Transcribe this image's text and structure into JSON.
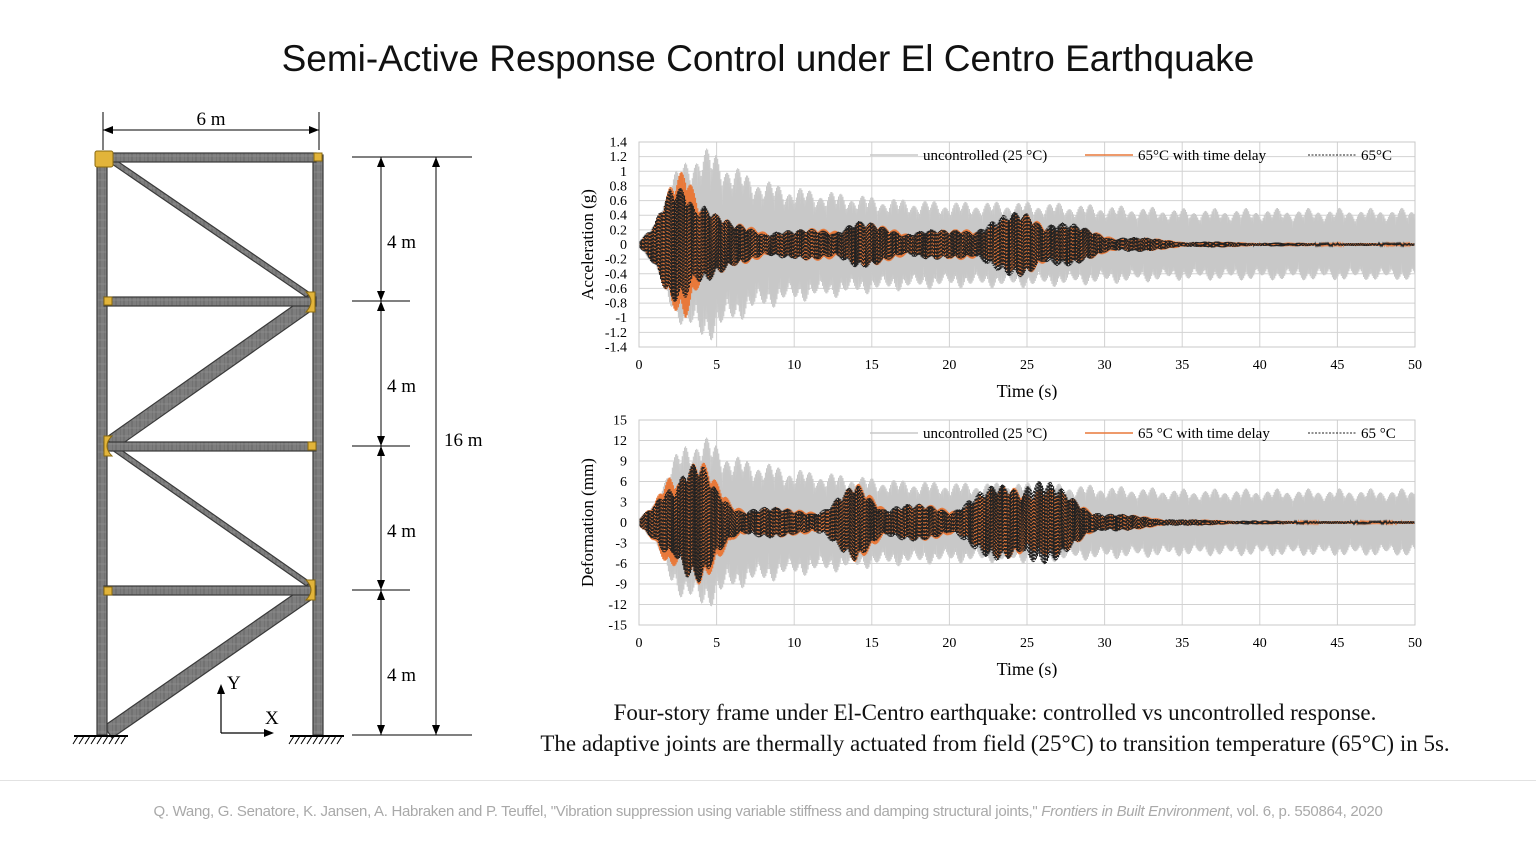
{
  "title": "Semi-Active Response Control under El Centro Earthquake",
  "frame": {
    "width_label": "6 m",
    "story_labels": [
      "4 m",
      "4 m",
      "4 m",
      "4 m"
    ],
    "height_label": "16 m",
    "axis_y": "Y",
    "axis_x": "X"
  },
  "chart_data": [
    {
      "type": "line",
      "xlabel": "Time (s)",
      "ylabel": "Acceleration (g)",
      "xlim": [
        0,
        50
      ],
      "ylim": [
        -1.4,
        1.4
      ],
      "xticks": [
        0,
        5,
        10,
        15,
        20,
        25,
        30,
        35,
        40,
        45,
        50
      ],
      "yticks": [
        1.4,
        1.2,
        1,
        0.8,
        0.6,
        0.4,
        0.2,
        0,
        -0.2,
        -0.4,
        -0.6,
        -0.8,
        -1,
        -1.2,
        -1.4
      ],
      "legend_position": "top-right",
      "grid": true,
      "series": [
        {
          "name": "uncontrolled (25 °C)",
          "color": "#c8c8c8",
          "peak": 1.4,
          "tail": 0.5,
          "x": [
            0,
            1,
            2,
            3,
            4,
            5,
            6,
            8,
            10,
            12,
            14,
            16,
            20,
            25,
            30,
            35,
            40,
            45,
            50
          ],
          "y": [
            0.05,
            0.3,
            0.9,
            1.2,
            1.35,
            1.3,
            1.1,
            0.9,
            0.8,
            0.75,
            0.7,
            0.65,
            0.6,
            0.6,
            0.55,
            0.5,
            0.5,
            0.5,
            0.5
          ]
        },
        {
          "name": "65°C with time delay",
          "color": "#e8793a",
          "peak": 1.2,
          "tail": 0.02,
          "x": [
            0,
            1,
            2,
            3,
            4,
            5,
            6,
            8,
            10,
            12,
            14,
            16,
            20,
            25,
            30,
            35,
            40,
            45,
            50
          ],
          "y": [
            0.05,
            0.3,
            0.8,
            1.2,
            0.9,
            0.5,
            0.3,
            0.25,
            0.2,
            0.25,
            0.35,
            0.25,
            0.2,
            0.45,
            0.15,
            0.05,
            0.03,
            0.02,
            0.02
          ]
        },
        {
          "name": "65°C",
          "color": "#222222",
          "peak": 1.0,
          "tail": 0.02,
          "x": [
            0,
            1,
            2,
            3,
            4,
            5,
            6,
            8,
            10,
            12,
            14,
            16,
            20,
            25,
            30,
            35,
            40,
            45,
            50
          ],
          "y": [
            0.05,
            0.3,
            0.8,
            1.0,
            0.8,
            0.45,
            0.3,
            0.25,
            0.2,
            0.25,
            0.35,
            0.25,
            0.2,
            0.5,
            0.15,
            0.05,
            0.03,
            0.02,
            0.02
          ]
        }
      ]
    },
    {
      "type": "line",
      "xlabel": "Time (s)",
      "ylabel": "Deformation (mm)",
      "xlim": [
        0,
        50
      ],
      "ylim": [
        -15,
        15
      ],
      "xticks": [
        0,
        5,
        10,
        15,
        20,
        25,
        30,
        35,
        40,
        45,
        50
      ],
      "yticks": [
        15,
        12,
        9,
        6,
        3,
        0,
        -3,
        -6,
        -9,
        -12,
        -15
      ],
      "legend_position": "top-right",
      "grid": true,
      "series": [
        {
          "name": "uncontrolled (25 °C)",
          "color": "#c8c8c8",
          "peak": 13,
          "tail": 5,
          "x": [
            0,
            1,
            2,
            3,
            4,
            5,
            6,
            8,
            10,
            12,
            14,
            16,
            20,
            25,
            30,
            35,
            40,
            45,
            50
          ],
          "y": [
            0.5,
            3,
            9,
            12,
            13,
            12,
            10,
            9,
            8,
            7.5,
            7,
            6.5,
            6,
            6,
            5.5,
            5,
            5,
            5,
            5
          ]
        },
        {
          "name": "65 °C with time delay",
          "color": "#e8793a",
          "peak": 11.5,
          "tail": 0.2,
          "x": [
            0,
            1,
            2,
            3,
            4,
            5,
            6,
            8,
            10,
            12,
            14,
            16,
            20,
            25,
            30,
            35,
            40,
            45,
            50
          ],
          "y": [
            0.5,
            3,
            9,
            11.5,
            10,
            6,
            3,
            2.5,
            2,
            2.5,
            6,
            3,
            2.5,
            7,
            1.5,
            0.5,
            0.3,
            0.2,
            0.2
          ]
        },
        {
          "name": "65 °C",
          "color": "#222222",
          "peak": 10,
          "tail": 0.2,
          "x": [
            0,
            1,
            2,
            3,
            4,
            5,
            6,
            8,
            10,
            12,
            14,
            16,
            20,
            25,
            30,
            35,
            40,
            45,
            50
          ],
          "y": [
            0.5,
            3,
            8,
            10,
            9,
            5,
            3,
            2.5,
            2,
            2.5,
            6,
            3,
            2.5,
            8,
            1.5,
            0.5,
            0.3,
            0.2,
            0.2
          ]
        }
      ]
    }
  ],
  "caption": {
    "line1": "Four-story frame under El-Centro earthquake: controlled vs uncontrolled response.",
    "line2": "The adaptive joints are thermally actuated from field (25°C) to transition temperature (65°C) in 5s."
  },
  "reference": {
    "authors": "Q. Wang, G. Senatore, K. Jansen, A. Habraken and P. Teuffel, \"Vibration suppression using variable stiffness and damping structural joints,\" ",
    "journal": "Frontiers in Built Environment",
    "details": ", vol. 6, p. 550864, 2020"
  }
}
